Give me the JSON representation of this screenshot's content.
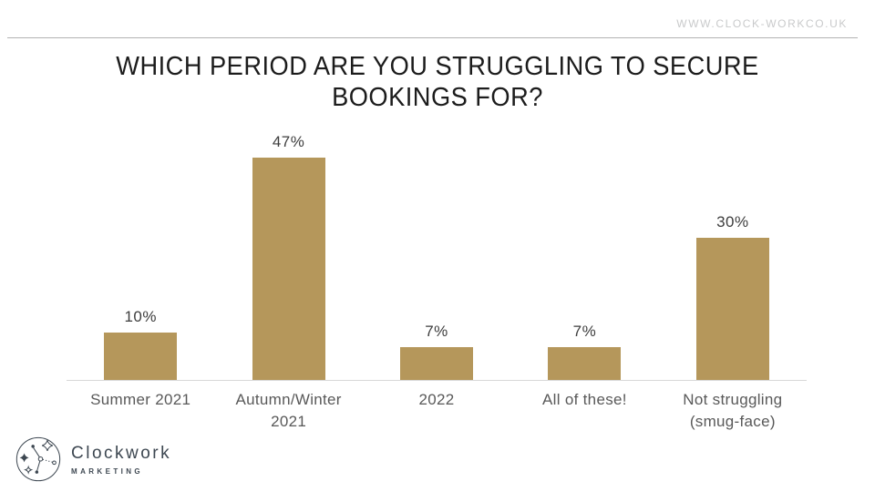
{
  "header": {
    "url": "WWW.CLOCK-WORKCO.UK"
  },
  "title_lines": [
    "WHICH PERIOD ARE YOU STRUGGLING TO SECURE",
    "BOOKINGS FOR?"
  ],
  "chart_data": {
    "type": "bar",
    "title": "WHICH PERIOD ARE YOU STRUGGLING TO SECURE BOOKINGS FOR?",
    "categories": [
      "Summer 2021",
      "Autumn/Winter 2021",
      "2022",
      "All of these!",
      "Not struggling (smug-face)"
    ],
    "values": [
      10,
      47,
      7,
      7,
      30
    ],
    "value_labels": [
      "10%",
      "47%",
      "7%",
      "7%",
      "30%"
    ],
    "xlabel": "",
    "ylabel": "",
    "ylim": [
      0,
      52
    ],
    "grid": false,
    "legend": false,
    "bar_color": "#b5975b",
    "axis_line_color": "#d8d8d8",
    "value_label_color": "#3d3d3d",
    "category_label_color": "#595959"
  },
  "logo": {
    "name": "Clockwork",
    "subtext": "MARKETING",
    "color": "#3d4751"
  }
}
